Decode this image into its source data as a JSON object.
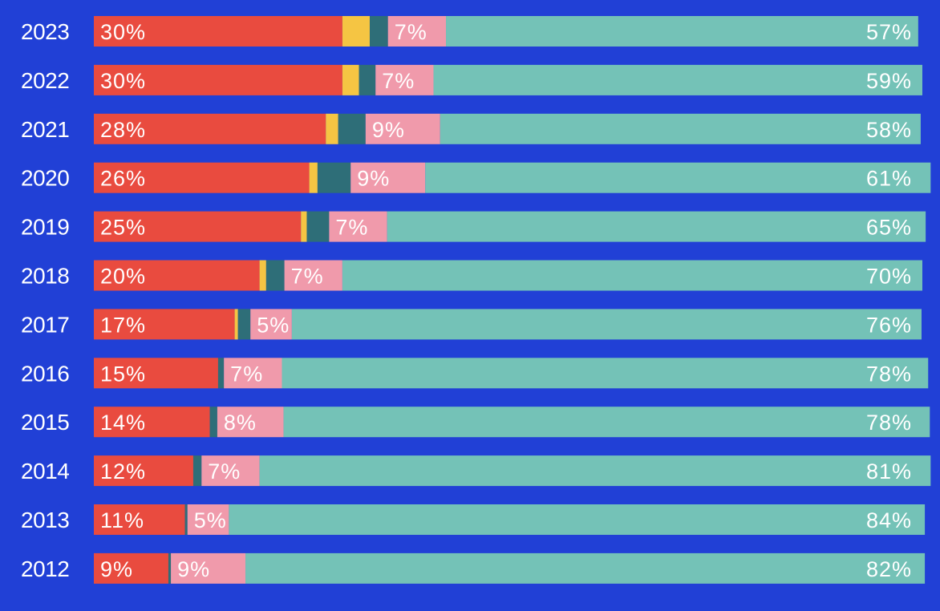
{
  "colors": {
    "background": "#2140d6",
    "text": "#ffffff"
  },
  "chart_data": {
    "type": "bar",
    "orientation": "horizontal",
    "stacked": true,
    "normalized_percent": true,
    "xlim": [
      0,
      100
    ],
    "grid": false,
    "legend": "none",
    "categories": [
      "2023",
      "2022",
      "2021",
      "2020",
      "2019",
      "2018",
      "2017",
      "2016",
      "2015",
      "2014",
      "2013",
      "2012"
    ],
    "series": [
      {
        "color": "#e94b3f",
        "values": [
          30,
          30,
          28,
          26,
          25,
          20,
          17,
          15,
          14,
          12,
          11,
          9
        ],
        "labels": [
          "30%",
          "30%",
          "28%",
          "26%",
          "25%",
          "20%",
          "17%",
          "15%",
          "14%",
          "12%",
          "11%",
          "9%"
        ]
      },
      {
        "color": "#f5c543",
        "values": [
          3.3,
          2,
          1.5,
          1,
          0.7,
          0.8,
          0.4,
          0,
          0,
          0,
          0,
          0
        ],
        "labels": [
          "",
          "",
          "",
          "",
          "",
          "",
          "",
          "",
          "",
          "",
          "",
          ""
        ]
      },
      {
        "color": "#2e6e78",
        "values": [
          2.2,
          2,
          3.3,
          4,
          2.7,
          2.2,
          1.5,
          0.7,
          0.9,
          1,
          0.3,
          0.3
        ],
        "labels": [
          "",
          "",
          "",
          "",
          "",
          "",
          "",
          "",
          "",
          "",
          "",
          ""
        ]
      },
      {
        "color": "#f09aab",
        "values": [
          7,
          7,
          9,
          9,
          7,
          7,
          5,
          7,
          8,
          7,
          5,
          9
        ],
        "labels": [
          "7%",
          "7%",
          "9%",
          "9%",
          "7%",
          "7%",
          "5%",
          "7%",
          "8%",
          "7%",
          "5%",
          "9%"
        ]
      },
      {
        "color": "#74c2b7",
        "values": [
          57,
          59,
          58,
          61,
          65,
          70,
          76,
          78,
          78,
          81,
          84,
          82
        ],
        "labels": [
          "57%",
          "59%",
          "58%",
          "61%",
          "65%",
          "70%",
          "76%",
          "78%",
          "78%",
          "81%",
          "84%",
          "82%"
        ]
      }
    ]
  }
}
